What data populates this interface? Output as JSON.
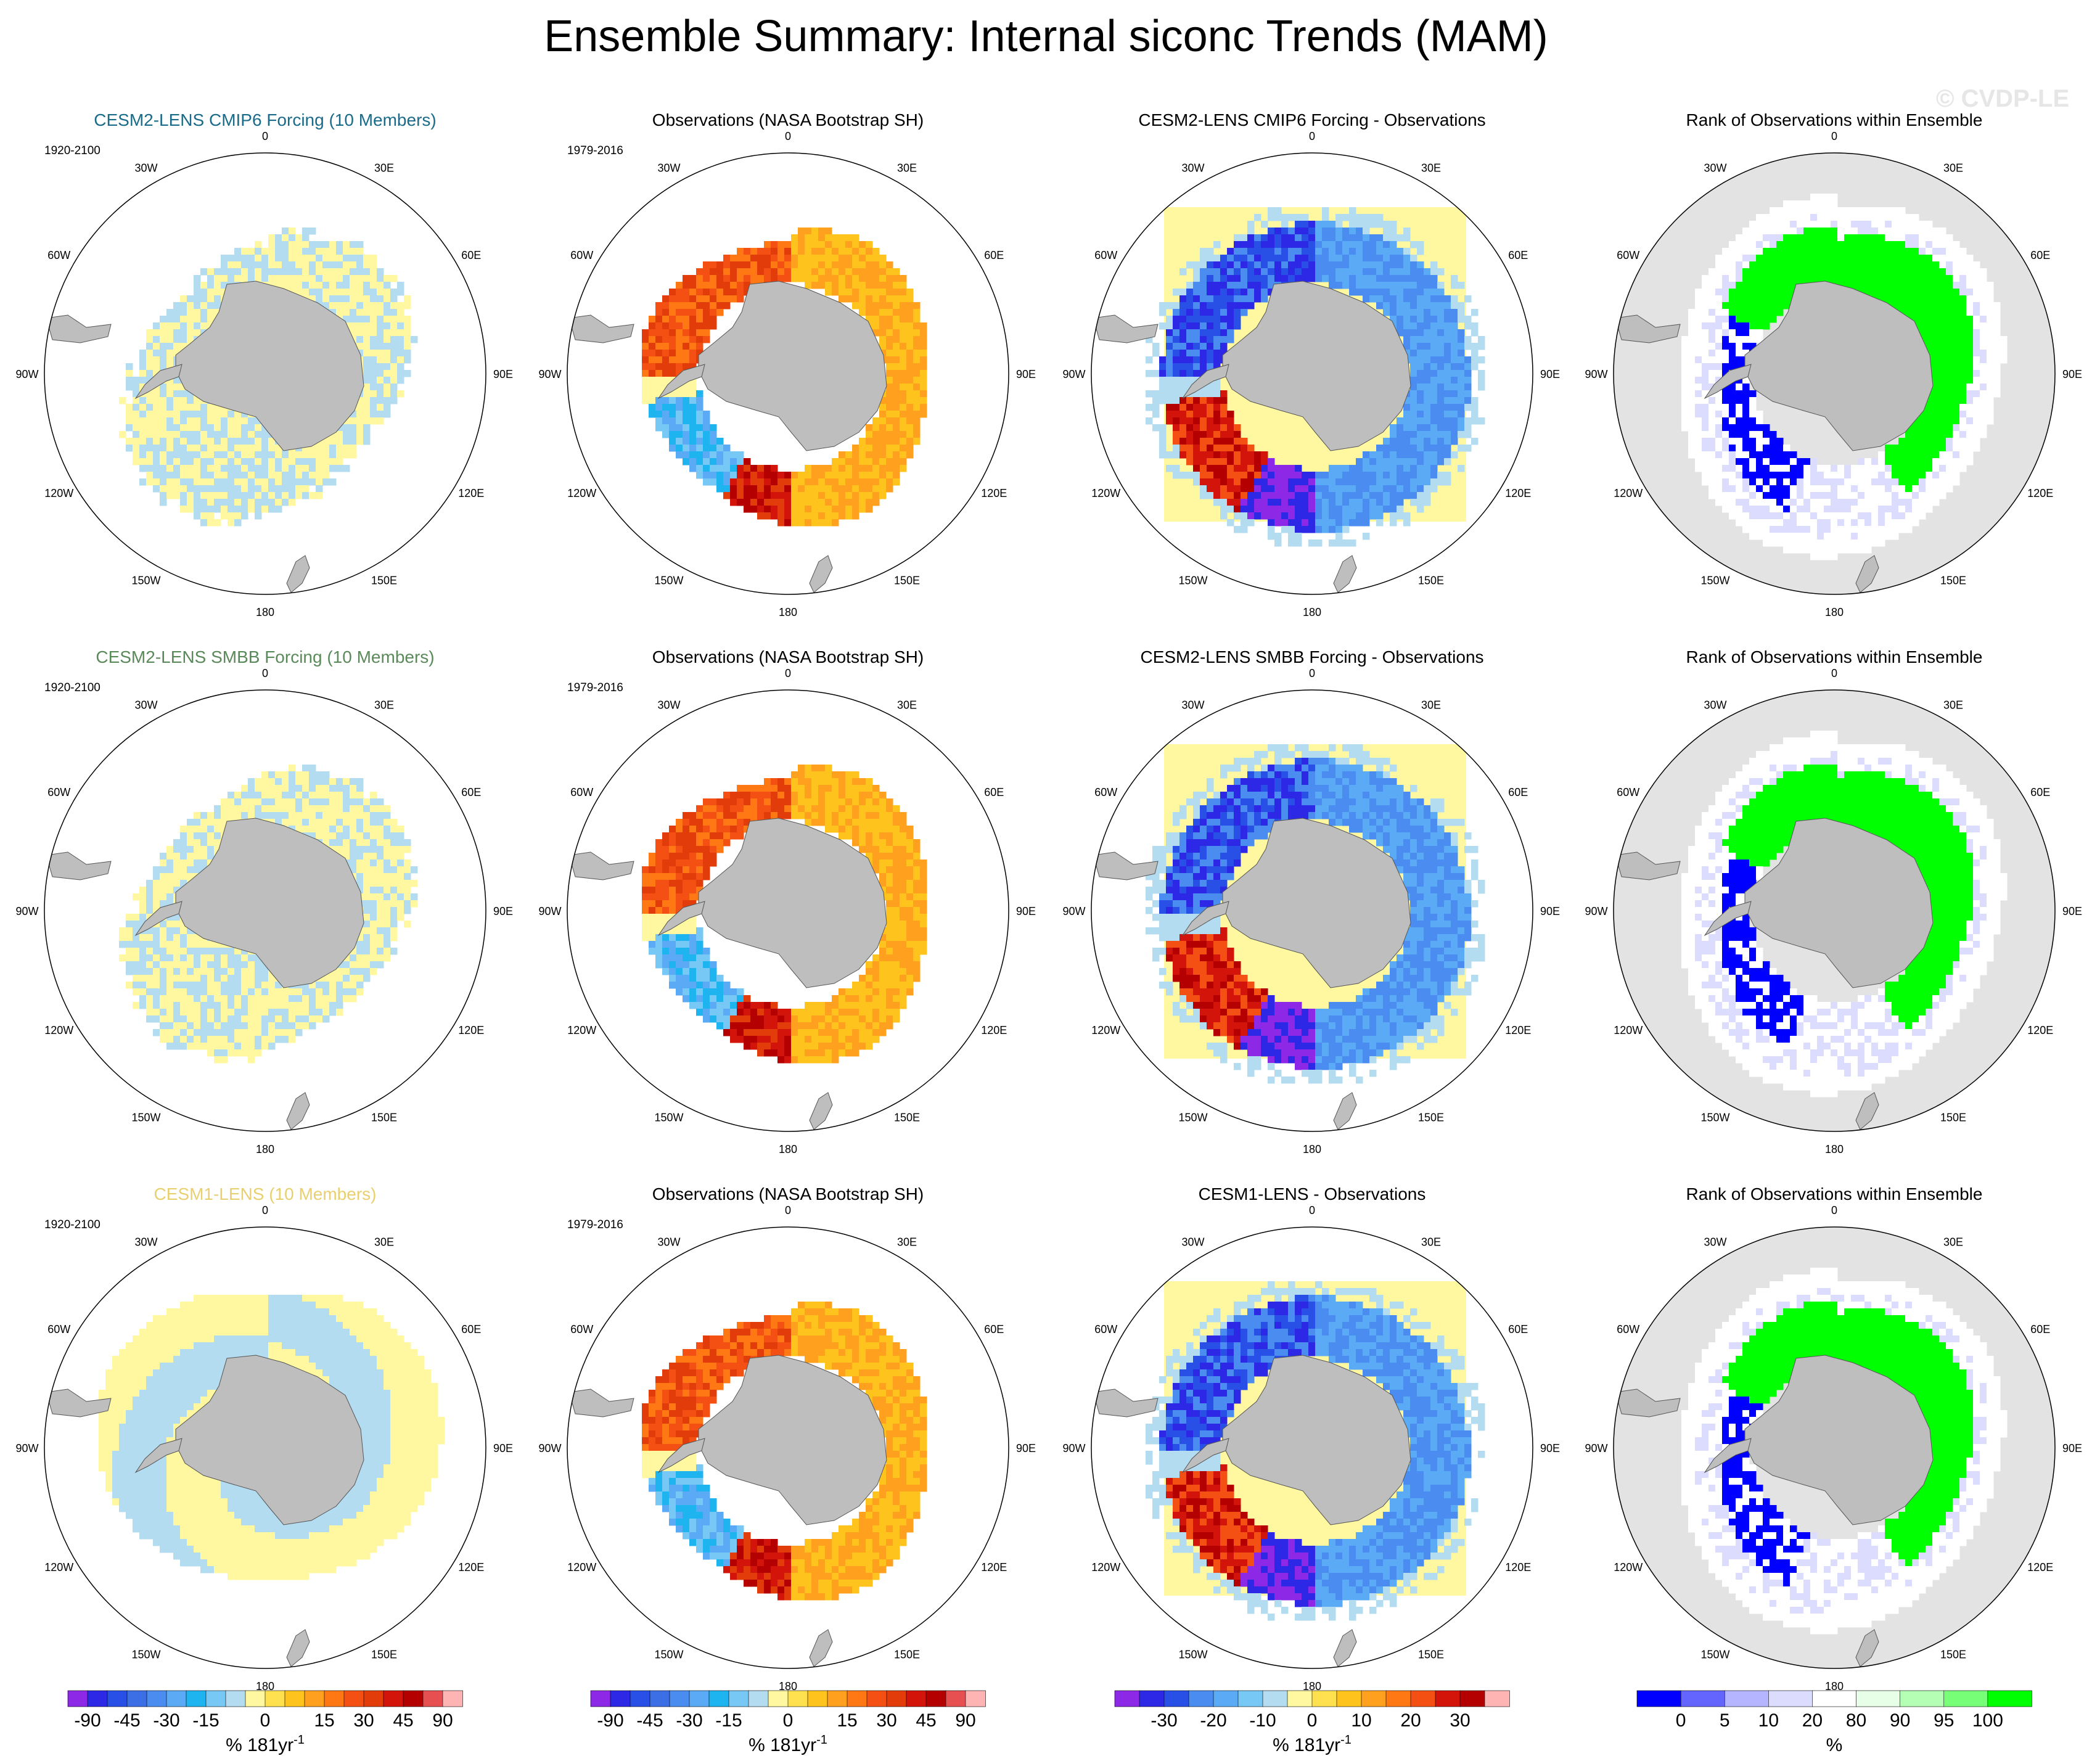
{
  "title": "Ensemble Summary: Internal siconc Trends (MAM)",
  "watermark": "© CVDP-LE",
  "longitude_labels": [
    "0",
    "30E",
    "60E",
    "90E",
    "120E",
    "150E",
    "180",
    "150W",
    "120W",
    "90W",
    "60W",
    "30W"
  ],
  "colors": {
    "land": "#bebebe",
    "rank_background": "#e3e3e3",
    "trend_scale": [
      "#8c28e6",
      "#2d28e6",
      "#2850e6",
      "#3c6ee6",
      "#4b8cf0",
      "#5aaaf5",
      "#1eb4f0",
      "#78c8f5",
      "#b4dcf0",
      "#fff8a0",
      "#ffe150",
      "#ffc31e",
      "#ffa01e",
      "#ff7814",
      "#f55014",
      "#e13c0a",
      "#d2140a",
      "#b40000",
      "#e65050",
      "#ffb4b4"
    ],
    "diff_scale": [
      "#8c28e6",
      "#2d28e6",
      "#2850e6",
      "#4b8cf0",
      "#5aaaf5",
      "#78c8f5",
      "#b4dcf0",
      "#fff8a0",
      "#ffe150",
      "#ffc31e",
      "#ffa01e",
      "#ff7814",
      "#f55014",
      "#d2140a",
      "#b40000",
      "#ffb4b4"
    ],
    "rank_scale": [
      "#0000ff",
      "#6464ff",
      "#b4b4ff",
      "#dcdcff",
      "#ffffff",
      "#e6ffe6",
      "#b4ffb4",
      "#78ff78",
      "#00ff00"
    ]
  },
  "chart_data": [
    {
      "row": 1,
      "col": 1,
      "type": "heatmap",
      "title": "CESM2-LENS CMIP6 Forcing (10 Members)",
      "title_color": "#1a6b8a",
      "period": "1920-2100",
      "pattern": "noise"
    },
    {
      "row": 1,
      "col": 2,
      "type": "heatmap",
      "title": "Observations (NASA Bootstrap SH)",
      "title_color": "#000000",
      "period": "1979-2016",
      "pattern": "obs"
    },
    {
      "row": 1,
      "col": 3,
      "type": "heatmap",
      "title": "CESM2-LENS CMIP6 Forcing - Observations",
      "title_color": "#000000",
      "pattern": "diff"
    },
    {
      "row": 1,
      "col": 4,
      "type": "heatmap",
      "title": "Rank of Observations within Ensemble",
      "title_color": "#000000",
      "pattern": "rank"
    },
    {
      "row": 2,
      "col": 1,
      "type": "heatmap",
      "title": "CESM2-LENS SMBB Forcing (10 Members)",
      "title_color": "#5a8a5a",
      "period": "1920-2100",
      "pattern": "noise"
    },
    {
      "row": 2,
      "col": 2,
      "type": "heatmap",
      "title": "Observations (NASA Bootstrap SH)",
      "title_color": "#000000",
      "period": "1979-2016",
      "pattern": "obs"
    },
    {
      "row": 2,
      "col": 3,
      "type": "heatmap",
      "title": "CESM2-LENS SMBB Forcing - Observations",
      "title_color": "#000000",
      "pattern": "diff"
    },
    {
      "row": 2,
      "col": 4,
      "type": "heatmap",
      "title": "Rank of Observations within Ensemble",
      "title_color": "#000000",
      "pattern": "rank"
    },
    {
      "row": 3,
      "col": 1,
      "type": "heatmap",
      "title": "CESM1-LENS (10 Members)",
      "title_color": "#e8d070",
      "period": "1920-2100",
      "pattern": "zonal"
    },
    {
      "row": 3,
      "col": 2,
      "type": "heatmap",
      "title": "Observations (NASA Bootstrap SH)",
      "title_color": "#000000",
      "period": "1979-2016",
      "pattern": "obs"
    },
    {
      "row": 3,
      "col": 3,
      "type": "heatmap",
      "title": "CESM1-LENS - Observations",
      "title_color": "#000000",
      "pattern": "diff"
    },
    {
      "row": 3,
      "col": 4,
      "type": "heatmap",
      "title": "Rank of Observations within Ensemble",
      "title_color": "#000000",
      "pattern": "rank"
    }
  ],
  "colorbars": [
    {
      "col": 1,
      "scale": "trend",
      "tick_labels": [
        "-90",
        "-45",
        "-30",
        "-15",
        "0",
        "15",
        "30",
        "45",
        "90"
      ],
      "tick_bounds": [
        1,
        3,
        5,
        7,
        10,
        13,
        15,
        17,
        19
      ],
      "units_prefix": "% 181yr",
      "units_exp": "-1"
    },
    {
      "col": 2,
      "scale": "trend",
      "tick_labels": [
        "-90",
        "-45",
        "-30",
        "-15",
        "0",
        "15",
        "30",
        "45",
        "90"
      ],
      "tick_bounds": [
        1,
        3,
        5,
        7,
        10,
        13,
        15,
        17,
        19
      ],
      "units_prefix": "% 181yr",
      "units_exp": "-1"
    },
    {
      "col": 3,
      "scale": "diff",
      "tick_labels": [
        "-30",
        "-20",
        "-10",
        "0",
        "10",
        "20",
        "30"
      ],
      "tick_bounds": [
        2,
        4,
        6,
        8,
        10,
        12,
        14
      ],
      "units_prefix": "% 181yr",
      "units_exp": "-1"
    },
    {
      "col": 4,
      "scale": "rank",
      "tick_labels": [
        "0",
        "5",
        "10",
        "20",
        "80",
        "90",
        "95",
        "100"
      ],
      "tick_bounds": [
        1,
        2,
        3,
        4,
        5,
        6,
        7,
        8
      ],
      "units_prefix": "%",
      "units_exp": ""
    }
  ]
}
